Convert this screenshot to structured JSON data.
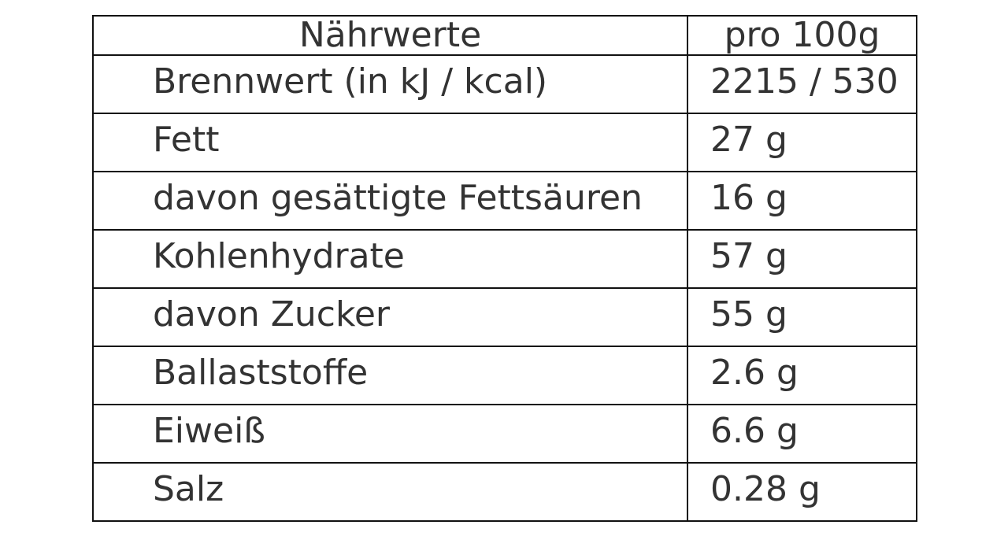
{
  "table": {
    "headers": {
      "name": "Nährwerte",
      "value": "pro 100g"
    },
    "rows": [
      {
        "name": "Brennwert (in kJ / kcal)",
        "value": "2215 / 530"
      },
      {
        "name": "Fett",
        "value": "27 g"
      },
      {
        "name": "davon gesättigte Fettsäuren",
        "value": "16 g"
      },
      {
        "name": "Kohlenhydrate",
        "value": "57 g"
      },
      {
        "name": "davon Zucker",
        "value": "55 g"
      },
      {
        "name": "Ballaststoffe",
        "value": "2.6 g"
      },
      {
        "name": "Eiweiß",
        "value": "6.6 g"
      },
      {
        "name": "Salz",
        "value": "0.28 g"
      }
    ]
  }
}
